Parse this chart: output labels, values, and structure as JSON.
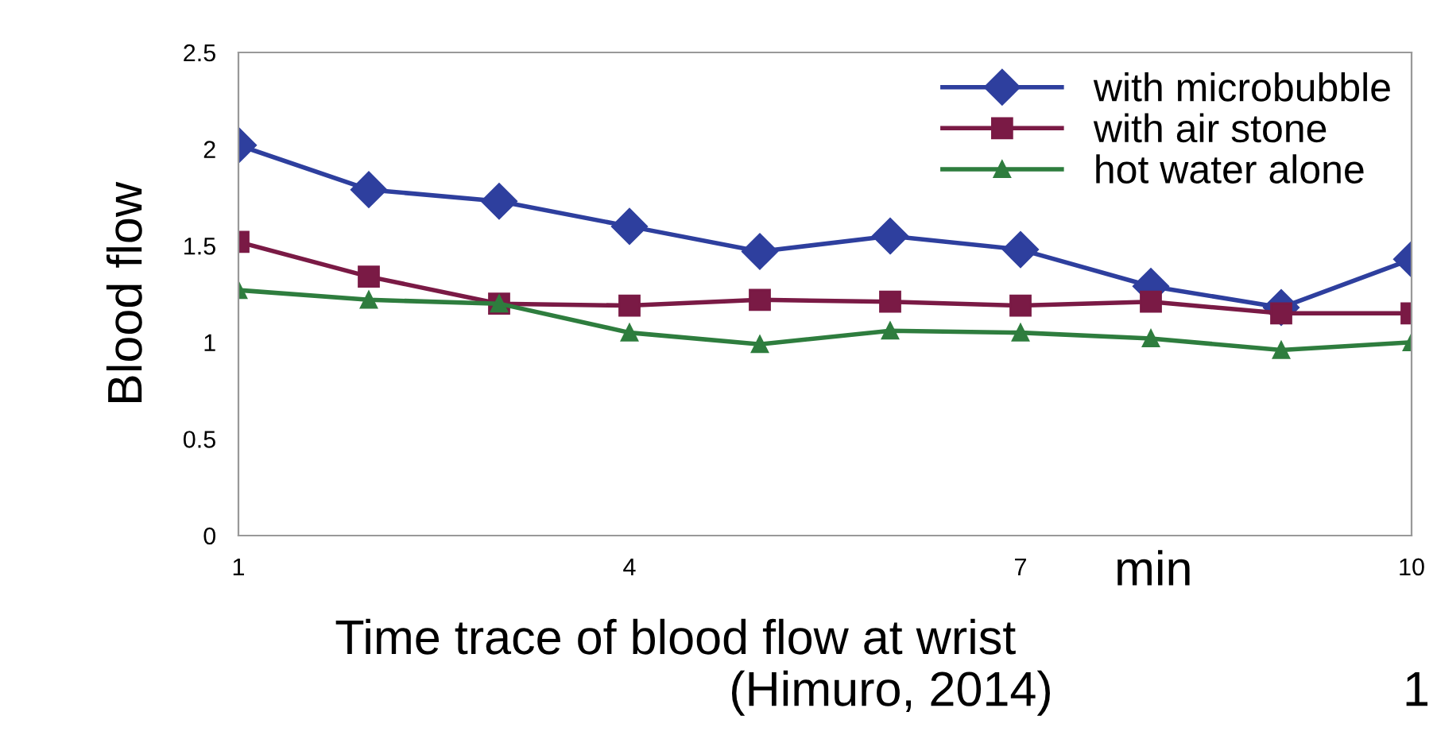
{
  "chart_data": {
    "type": "line",
    "xlabel": "min",
    "ylabel": "Blood flow",
    "x": [
      1,
      2,
      3,
      4,
      5,
      6,
      7,
      8,
      9,
      10
    ],
    "series": [
      {
        "name": "with microbubble",
        "color": "#2e3f9e",
        "marker": "diamond",
        "values": [
          2.02,
          1.79,
          1.73,
          1.6,
          1.47,
          1.55,
          1.48,
          1.29,
          1.18,
          1.43
        ]
      },
      {
        "name": "with air stone",
        "color": "#7a1a45",
        "marker": "square",
        "values": [
          1.52,
          1.34,
          1.2,
          1.19,
          1.22,
          1.21,
          1.19,
          1.21,
          1.15,
          1.15
        ]
      },
      {
        "name": "hot water alone",
        "color": "#2e7d3e",
        "marker": "triangle",
        "values": [
          1.27,
          1.22,
          1.2,
          1.05,
          0.99,
          1.06,
          1.05,
          1.02,
          0.96,
          1.0
        ]
      }
    ],
    "xlim": [
      1,
      10
    ],
    "xticks": [
      1,
      4,
      7,
      10
    ],
    "ylim": [
      0,
      2.5
    ],
    "yticks": [
      0,
      0.5,
      1,
      1.5,
      2,
      2.5
    ],
    "grid": false,
    "legend": "top right",
    "annotations": [
      "Time trace of blood flow at wrist",
      "(Himuro, 2014)",
      "1"
    ]
  }
}
